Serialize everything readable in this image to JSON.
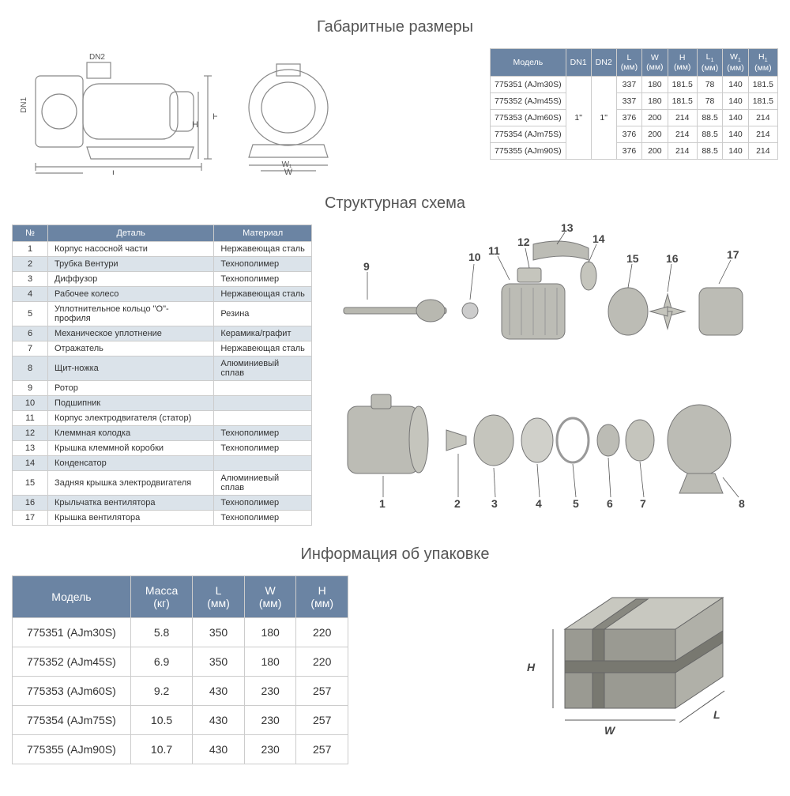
{
  "sections": {
    "dimensions": "Габаритные размеры",
    "structure": "Структурная схема",
    "packaging": "Информация об упаковке"
  },
  "dimsLabels": {
    "DN1": "DN1",
    "DN2": "DN2",
    "L": "L",
    "L1": "L",
    "W": "W",
    "W1": "W",
    "H": "H",
    "H1": "H"
  },
  "dimsTable": {
    "headers": [
      "Модель",
      "DN1",
      "DN2",
      "L\n(мм)",
      "W\n(мм)",
      "H\n(мм)",
      "L₁\n(мм)",
      "W₁\n(мм)",
      "H₁\n(мм)"
    ],
    "dn1": "1\"",
    "dn2": "1\"",
    "rows": [
      {
        "m": "775351 (AJm30S)",
        "L": "337",
        "W": "180",
        "H": "181.5",
        "L1": "78",
        "W1": "140",
        "H1": "181.5"
      },
      {
        "m": "775352 (AJm45S)",
        "L": "337",
        "W": "180",
        "H": "181.5",
        "L1": "78",
        "W1": "140",
        "H1": "181.5"
      },
      {
        "m": "775353 (AJm60S)",
        "L": "376",
        "W": "200",
        "H": "214",
        "L1": "88.5",
        "W1": "140",
        "H1": "214"
      },
      {
        "m": "775354 (AJm75S)",
        "L": "376",
        "W": "200",
        "H": "214",
        "L1": "88.5",
        "W1": "140",
        "H1": "214"
      },
      {
        "m": "775355 (AJm90S)",
        "L": "376",
        "W": "200",
        "H": "214",
        "L1": "88.5",
        "W1": "140",
        "H1": "214"
      }
    ]
  },
  "partsTable": {
    "headers": [
      "№",
      "Деталь",
      "Материал"
    ],
    "rows": [
      {
        "n": "1",
        "d": "Корпус насосной части",
        "m": "Нержавеющая сталь"
      },
      {
        "n": "2",
        "d": "Трубка Вентури",
        "m": "Технополимер"
      },
      {
        "n": "3",
        "d": "Диффузор",
        "m": "Технополимер"
      },
      {
        "n": "4",
        "d": "Рабочее колесо",
        "m": "Нержавеющая сталь"
      },
      {
        "n": "5",
        "d": "Уплотнительное кольцо \"О\"- профиля",
        "m": "Резина"
      },
      {
        "n": "6",
        "d": "Механическое уплотнение",
        "m": "Керамика/графит"
      },
      {
        "n": "7",
        "d": "Отражатель",
        "m": "Нержавеющая сталь"
      },
      {
        "n": "8",
        "d": "Щит-ножка",
        "m": "Алюминиевый сплав"
      },
      {
        "n": "9",
        "d": "Ротор",
        "m": ""
      },
      {
        "n": "10",
        "d": "Подшипник",
        "m": ""
      },
      {
        "n": "11",
        "d": "Корпус электродвигателя (статор)",
        "m": ""
      },
      {
        "n": "12",
        "d": "Клеммная колодка",
        "m": "Технополимер"
      },
      {
        "n": "13",
        "d": "Крышка клеммной коробки",
        "m": "Технополимер"
      },
      {
        "n": "14",
        "d": "Конденсатор",
        "m": ""
      },
      {
        "n": "15",
        "d": "Задняя крышка электродвигателя",
        "m": "Алюминиевый сплав"
      },
      {
        "n": "16",
        "d": "Крыльчатка вентилятора",
        "m": "Технополимер"
      },
      {
        "n": "17",
        "d": "Крышка вентилятора",
        "m": "Технополимер"
      }
    ]
  },
  "packTable": {
    "headers": [
      "Модель",
      "Масса\n(кг)",
      "L\n(мм)",
      "W\n(мм)",
      "H\n(мм)"
    ],
    "rows": [
      {
        "m": "775351 (AJm30S)",
        "mass": "5.8",
        "L": "350",
        "W": "180",
        "H": "220"
      },
      {
        "m": "775352 (AJm45S)",
        "mass": "6.9",
        "L": "350",
        "W": "180",
        "H": "220"
      },
      {
        "m": "775353 (AJm60S)",
        "mass": "9.2",
        "L": "430",
        "W": "230",
        "H": "257"
      },
      {
        "m": "775354 (AJm75S)",
        "mass": "10.5",
        "L": "430",
        "W": "230",
        "H": "257"
      },
      {
        "m": "775355 (AJm90S)",
        "mass": "10.7",
        "L": "430",
        "W": "230",
        "H": "257"
      }
    ]
  },
  "boxLabels": {
    "H": "H",
    "W": "W",
    "L": "L"
  },
  "callouts": [
    "1",
    "2",
    "3",
    "4",
    "5",
    "6",
    "7",
    "8",
    "9",
    "10",
    "11",
    "12",
    "13",
    "14",
    "15",
    "16",
    "17"
  ]
}
